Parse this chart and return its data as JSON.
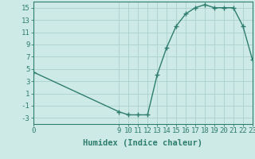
{
  "x": [
    0,
    9,
    10,
    11,
    12,
    13,
    14,
    15,
    16,
    17,
    18,
    19,
    20,
    21,
    22,
    23
  ],
  "y": [
    4.5,
    -2.0,
    -2.5,
    -2.5,
    -2.5,
    4.0,
    8.5,
    12.0,
    14.0,
    15.0,
    15.5,
    15.0,
    15.0,
    15.0,
    12.0,
    6.5
  ],
  "line_color": "#2e7d6e",
  "marker": "+",
  "marker_size": 4,
  "marker_lw": 1.0,
  "line_width": 1.0,
  "bg_color": "#ceeae7",
  "grid_color": "#b0d4cf",
  "xlabel": "Humidex (Indice chaleur)",
  "xlim": [
    0,
    23
  ],
  "ylim": [
    -4,
    16
  ],
  "yticks": [
    -3,
    -1,
    1,
    3,
    5,
    7,
    9,
    11,
    13,
    15
  ],
  "xticks": [
    0,
    9,
    10,
    11,
    12,
    13,
    14,
    15,
    16,
    17,
    18,
    19,
    20,
    21,
    22,
    23
  ],
  "xlabel_fontsize": 7.5,
  "tick_fontsize": 6.5
}
